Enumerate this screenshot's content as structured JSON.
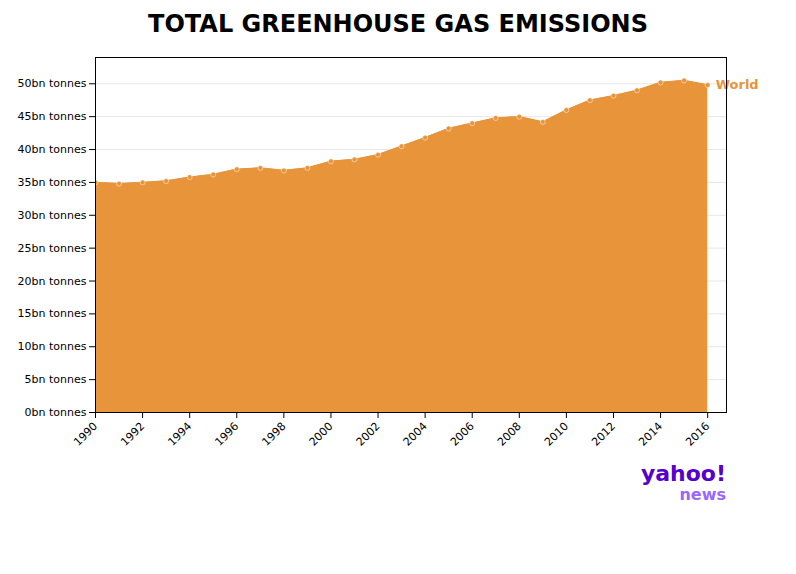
{
  "chart_data": {
    "type": "area",
    "title": "TOTAL GREENHOUSE GAS EMISSIONS",
    "x": [
      1990,
      1991,
      1992,
      1993,
      1994,
      1995,
      1996,
      1997,
      1998,
      1999,
      2000,
      2001,
      2002,
      2003,
      2004,
      2005,
      2006,
      2007,
      2008,
      2009,
      2010,
      2011,
      2012,
      2013,
      2014,
      2015,
      2016
    ],
    "series": [
      {
        "name": "World",
        "color": "#e8943a",
        "values": [
          35.0,
          34.8,
          35.0,
          35.2,
          35.8,
          36.2,
          37.0,
          37.2,
          36.8,
          37.2,
          38.2,
          38.5,
          39.2,
          40.5,
          41.8,
          43.2,
          44.0,
          44.8,
          45.0,
          44.2,
          46.0,
          47.5,
          48.2,
          49.0,
          50.2,
          50.5,
          49.8
        ]
      }
    ],
    "xlim": [
      1990,
      2016.8
    ],
    "xticks": [
      1990,
      1992,
      1994,
      1996,
      1998,
      2000,
      2002,
      2004,
      2006,
      2008,
      2010,
      2012,
      2014,
      2016
    ],
    "ylim": [
      0,
      54
    ],
    "yticks": [
      {
        "value": 0,
        "label": "0bn tonnes"
      },
      {
        "value": 5,
        "label": "5bn tonnes"
      },
      {
        "value": 10,
        "label": "10bn tonnes"
      },
      {
        "value": 15,
        "label": "15bn tonnes"
      },
      {
        "value": 20,
        "label": "20bn tonnes"
      },
      {
        "value": 25,
        "label": "25bn tonnes"
      },
      {
        "value": 30,
        "label": "30bn tonnes"
      },
      {
        "value": 35,
        "label": "35bn tonnes"
      },
      {
        "value": 40,
        "label": "40bn tonnes"
      },
      {
        "value": 45,
        "label": "45bn tonnes"
      },
      {
        "value": 50,
        "label": "50bn tonnes"
      }
    ],
    "grid": true,
    "annotations": [
      {
        "text": "yahoo!",
        "color": "#5500cc"
      },
      {
        "text": "news",
        "color": "#9966ff"
      }
    ]
  }
}
